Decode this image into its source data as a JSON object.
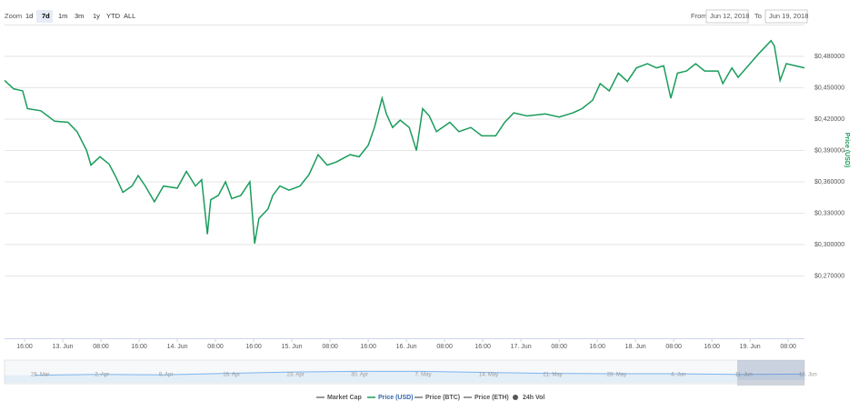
{
  "controls": {
    "zoom_label": "Zoom",
    "buttons": [
      "1d",
      "7d",
      "1m",
      "3m",
      "1y",
      "YTD",
      "ALL"
    ],
    "selected_index": 1,
    "from_label": "From",
    "from_value": "Jun 12, 2018",
    "to_label": "To",
    "to_value": "Jun 19, 2018"
  },
  "chart_data": {
    "type": "line",
    "y_label": "Price (USD)",
    "x": [
      11.8,
      13.7,
      15.6,
      16.6,
      19.4,
      22.3,
      25.1,
      27.0,
      29.0,
      29.9,
      31.8,
      33.7,
      35.2,
      36.6,
      38.5,
      39.8,
      41.3,
      43.2,
      45.1,
      48.0,
      49.9,
      51.8,
      53.1,
      54.3,
      55.0,
      56.6,
      58.1,
      59.4,
      61.3,
      63.2,
      64.2,
      65.1,
      67.0,
      68.0,
      69.5,
      71.4,
      73.7,
      75.6,
      77.5,
      79.4,
      81.3,
      84.2,
      86.1,
      88.0,
      89.3,
      90.9,
      91.8,
      93.1,
      94.7,
      96.6,
      98.1,
      99.4,
      100.8,
      102.3,
      105.1,
      107.0,
      109.5,
      111.8,
      114.7,
      116.6,
      118.5,
      121.3,
      125.1,
      128.0,
      130.9,
      132.8,
      135.0,
      136.6,
      138.5,
      140.4,
      142.3,
      144.2,
      146.5,
      148.4,
      149.9,
      151.4,
      152.8,
      154.7,
      156.6,
      158.5,
      161.3,
      162.3,
      164.2,
      165.5,
      168.0,
      169.9,
      172.4,
      173.1,
      174.3,
      175.6,
      177.5,
      179.4
    ],
    "series": [
      {
        "name": "Price (USD)",
        "color": "#1a9c5b",
        "values": [
          0.457,
          0.449,
          0.447,
          0.43,
          0.428,
          0.418,
          0.417,
          0.408,
          0.39,
          0.376,
          0.384,
          0.377,
          0.364,
          0.35,
          0.356,
          0.366,
          0.356,
          0.341,
          0.356,
          0.354,
          0.37,
          0.356,
          0.362,
          0.31,
          0.343,
          0.347,
          0.36,
          0.344,
          0.347,
          0.36,
          0.301,
          0.325,
          0.334,
          0.347,
          0.356,
          0.352,
          0.356,
          0.367,
          0.386,
          0.376,
          0.379,
          0.386,
          0.384,
          0.395,
          0.412,
          0.44,
          0.425,
          0.412,
          0.419,
          0.412,
          0.39,
          0.43,
          0.423,
          0.408,
          0.417,
          0.408,
          0.412,
          0.404,
          0.404,
          0.417,
          0.426,
          0.423,
          0.425,
          0.422,
          0.426,
          0.43,
          0.438,
          0.454,
          0.447,
          0.464,
          0.456,
          0.469,
          0.473,
          0.469,
          0.471,
          0.44,
          0.464,
          0.466,
          0.473,
          0.466,
          0.466,
          0.454,
          0.469,
          0.46,
          0.473,
          0.483,
          0.495,
          0.49,
          0.457,
          0.473,
          0.471,
          0.469
        ]
      }
    ],
    "xlim": [
      11.8,
      179.4
    ],
    "xticks": [
      {
        "value": 16,
        "label": "16:00"
      },
      {
        "value": 24,
        "label": "13. Jun"
      },
      {
        "value": 32,
        "label": "08:00"
      },
      {
        "value": 40,
        "label": "16:00"
      },
      {
        "value": 48,
        "label": "14. Jun"
      },
      {
        "value": 56,
        "label": "08:00"
      },
      {
        "value": 64,
        "label": "16:00"
      },
      {
        "value": 72,
        "label": "15. Jun"
      },
      {
        "value": 80,
        "label": "08:00"
      },
      {
        "value": 88,
        "label": "16:00"
      },
      {
        "value": 96,
        "label": "16. Jun"
      },
      {
        "value": 104,
        "label": "08:00"
      },
      {
        "value": 112,
        "label": "16:00"
      },
      {
        "value": 120,
        "label": "17. Jun"
      },
      {
        "value": 128,
        "label": "08:00"
      },
      {
        "value": 136,
        "label": "16:00"
      },
      {
        "value": 144,
        "label": "18. Jun"
      },
      {
        "value": 152,
        "label": "08:00"
      },
      {
        "value": 160,
        "label": "16:00"
      },
      {
        "value": 168,
        "label": "19. Jun"
      },
      {
        "value": 176,
        "label": "08:00"
      }
    ],
    "ylim": [
      0.21,
      0.51
    ],
    "yticks": [
      {
        "value": 0.27,
        "label": "$0,270000"
      },
      {
        "value": 0.3,
        "label": "$0,300000"
      },
      {
        "value": 0.33,
        "label": "$0,330000"
      },
      {
        "value": 0.36,
        "label": "$0,360000"
      },
      {
        "value": 0.39,
        "label": "$0,390000"
      },
      {
        "value": 0.42,
        "label": "$0,420000"
      },
      {
        "value": 0.45,
        "label": "$0,450000"
      },
      {
        "value": 0.48,
        "label": "$0,480000"
      }
    ],
    "grid": true,
    "other_legend_entries": [
      "Market Cap",
      "Price (BTC)",
      "Price (ETH)",
      "24h Vol"
    ]
  },
  "navigator": {
    "categories": [
      "26. Mar",
      "2. Apr",
      "9. Apr",
      "16. Apr",
      "23. Apr",
      "30. Apr",
      "7. May",
      "14. May",
      "21. May",
      "28. May",
      "4. Jun",
      "11. Jun",
      "18. Jun"
    ],
    "values": [
      0.22,
      0.24,
      0.23,
      0.27,
      0.31,
      0.33,
      0.33,
      0.3,
      0.27,
      0.26,
      0.26,
      0.24,
      0.25
    ],
    "ylim": [
      0,
      0.6
    ],
    "color": "#7cb5ec"
  }
}
